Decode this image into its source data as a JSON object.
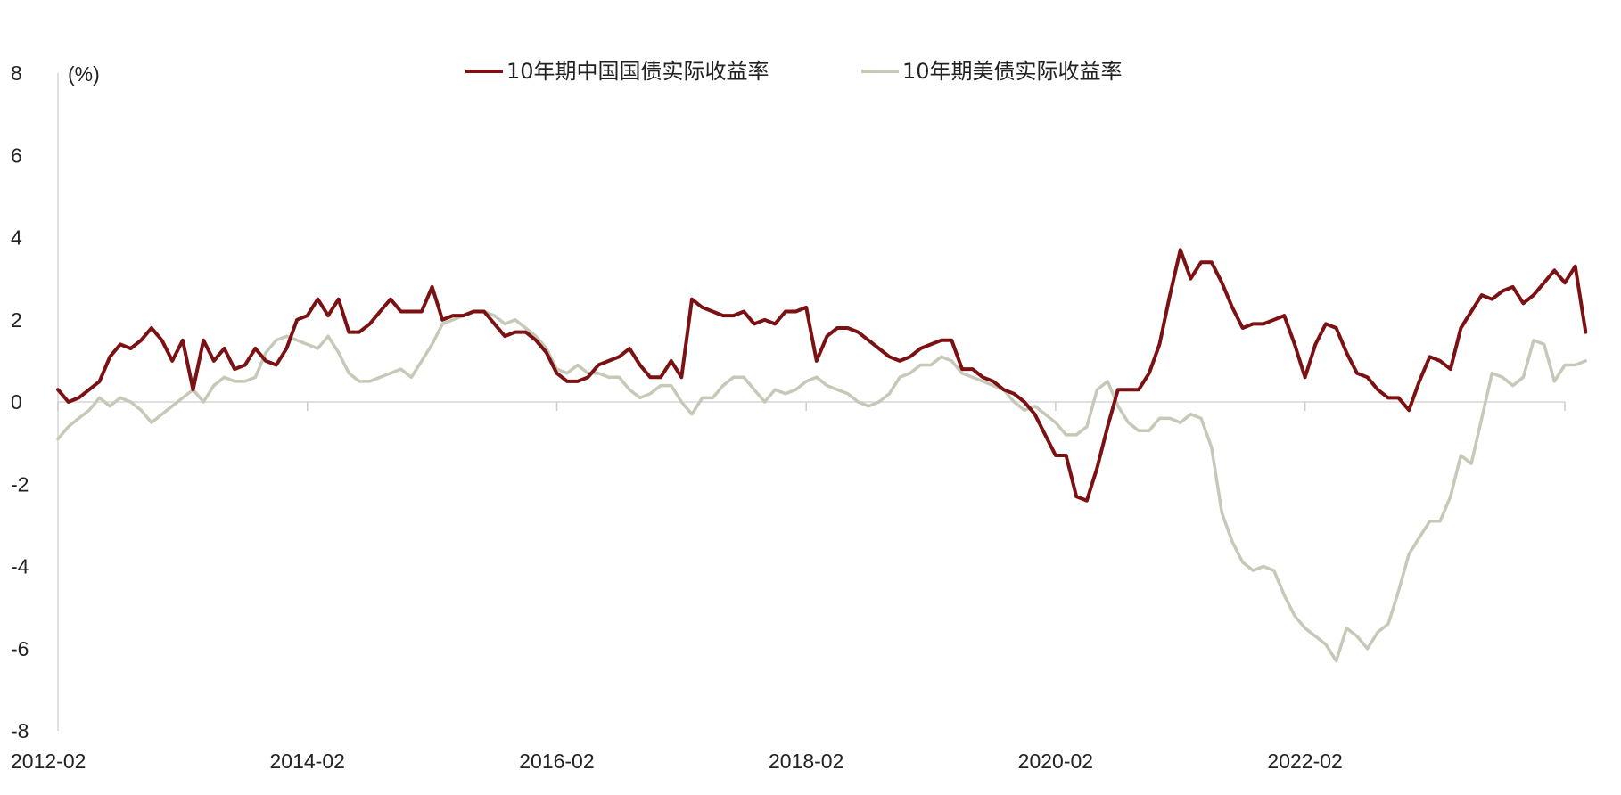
{
  "chart_data": {
    "type": "line",
    "ylabel": "(%)",
    "ylim": [
      -8,
      8
    ],
    "yticks": [
      8,
      6,
      4,
      2,
      0,
      -2,
      -4,
      -6,
      -8
    ],
    "ytick_labels": [
      "8",
      "6",
      "4",
      "2",
      "0",
      "-2",
      "-4",
      "-6",
      "-8"
    ],
    "x_range": [
      "2012-02",
      "2024-03"
    ],
    "xtick_labels": [
      "2012-02",
      "2014-02",
      "2016-02",
      "2018-02",
      "2020-02",
      "2022-02"
    ],
    "legend_position": "top-center",
    "grid": false,
    "series": [
      {
        "name": "10年期中国国债实际收益率",
        "color": "#7b1113",
        "points": [
          [
            "2012-02",
            0.3
          ],
          [
            "2012-03",
            0.0
          ],
          [
            "2012-04",
            0.1
          ],
          [
            "2012-05",
            0.3
          ],
          [
            "2012-06",
            0.5
          ],
          [
            "2012-07",
            1.1
          ],
          [
            "2012-08",
            1.4
          ],
          [
            "2012-09",
            1.3
          ],
          [
            "2012-10",
            1.5
          ],
          [
            "2012-11",
            1.8
          ],
          [
            "2012-12",
            1.5
          ],
          [
            "2013-01",
            1.0
          ],
          [
            "2013-02",
            1.5
          ],
          [
            "2013-03",
            0.3
          ],
          [
            "2013-04",
            1.5
          ],
          [
            "2013-05",
            1.0
          ],
          [
            "2013-06",
            1.3
          ],
          [
            "2013-07",
            0.8
          ],
          [
            "2013-08",
            0.9
          ],
          [
            "2013-09",
            1.3
          ],
          [
            "2013-10",
            1.0
          ],
          [
            "2013-11",
            0.9
          ],
          [
            "2013-12",
            1.3
          ],
          [
            "2014-01",
            2.0
          ],
          [
            "2014-02",
            2.1
          ],
          [
            "2014-03",
            2.5
          ],
          [
            "2014-04",
            2.1
          ],
          [
            "2014-05",
            2.5
          ],
          [
            "2014-06",
            1.7
          ],
          [
            "2014-07",
            1.7
          ],
          [
            "2014-08",
            1.9
          ],
          [
            "2014-09",
            2.2
          ],
          [
            "2014-10",
            2.5
          ],
          [
            "2014-11",
            2.2
          ],
          [
            "2014-12",
            2.2
          ],
          [
            "2015-01",
            2.2
          ],
          [
            "2015-02",
            2.8
          ],
          [
            "2015-03",
            2.0
          ],
          [
            "2015-04",
            2.1
          ],
          [
            "2015-05",
            2.1
          ],
          [
            "2015-06",
            2.2
          ],
          [
            "2015-07",
            2.2
          ],
          [
            "2015-08",
            1.9
          ],
          [
            "2015-09",
            1.6
          ],
          [
            "2015-10",
            1.7
          ],
          [
            "2015-11",
            1.7
          ],
          [
            "2015-12",
            1.5
          ],
          [
            "2016-01",
            1.2
          ],
          [
            "2016-02",
            0.7
          ],
          [
            "2016-03",
            0.5
          ],
          [
            "2016-04",
            0.5
          ],
          [
            "2016-05",
            0.6
          ],
          [
            "2016-06",
            0.9
          ],
          [
            "2016-07",
            1.0
          ],
          [
            "2016-08",
            1.1
          ],
          [
            "2016-09",
            1.3
          ],
          [
            "2016-10",
            0.9
          ],
          [
            "2016-11",
            0.6
          ],
          [
            "2016-12",
            0.6
          ],
          [
            "2017-01",
            1.0
          ],
          [
            "2017-02",
            0.6
          ],
          [
            "2017-03",
            2.5
          ],
          [
            "2017-04",
            2.3
          ],
          [
            "2017-05",
            2.2
          ],
          [
            "2017-06",
            2.1
          ],
          [
            "2017-07",
            2.1
          ],
          [
            "2017-08",
            2.2
          ],
          [
            "2017-09",
            1.9
          ],
          [
            "2017-10",
            2.0
          ],
          [
            "2017-11",
            1.9
          ],
          [
            "2017-12",
            2.2
          ],
          [
            "2018-01",
            2.2
          ],
          [
            "2018-02",
            2.3
          ],
          [
            "2018-03",
            1.0
          ],
          [
            "2018-04",
            1.6
          ],
          [
            "2018-05",
            1.8
          ],
          [
            "2018-06",
            1.8
          ],
          [
            "2018-07",
            1.7
          ],
          [
            "2018-08",
            1.5
          ],
          [
            "2018-09",
            1.3
          ],
          [
            "2018-10",
            1.1
          ],
          [
            "2018-11",
            1.0
          ],
          [
            "2018-12",
            1.1
          ],
          [
            "2019-01",
            1.3
          ],
          [
            "2019-02",
            1.4
          ],
          [
            "2019-03",
            1.5
          ],
          [
            "2019-04",
            1.5
          ],
          [
            "2019-05",
            0.8
          ],
          [
            "2019-06",
            0.8
          ],
          [
            "2019-07",
            0.6
          ],
          [
            "2019-08",
            0.5
          ],
          [
            "2019-09",
            0.3
          ],
          [
            "2019-10",
            0.2
          ],
          [
            "2019-11",
            0.0
          ],
          [
            "2019-12",
            -0.3
          ],
          [
            "2020-01",
            -0.8
          ],
          [
            "2020-02",
            -1.3
          ],
          [
            "2020-03",
            -1.3
          ],
          [
            "2020-04",
            -2.3
          ],
          [
            "2020-05",
            -2.4
          ],
          [
            "2020-06",
            -1.6
          ],
          [
            "2020-07",
            -0.6
          ],
          [
            "2020-08",
            0.3
          ],
          [
            "2020-09",
            0.3
          ],
          [
            "2020-10",
            0.3
          ],
          [
            "2020-11",
            0.7
          ],
          [
            "2020-12",
            1.4
          ],
          [
            "2021-01",
            2.6
          ],
          [
            "2021-02",
            3.7
          ],
          [
            "2021-03",
            3.0
          ],
          [
            "2021-04",
            3.4
          ],
          [
            "2021-05",
            3.4
          ],
          [
            "2021-06",
            2.9
          ],
          [
            "2021-07",
            2.3
          ],
          [
            "2021-08",
            1.8
          ],
          [
            "2021-09",
            1.9
          ],
          [
            "2021-10",
            1.9
          ],
          [
            "2021-11",
            2.0
          ],
          [
            "2021-12",
            2.1
          ],
          [
            "2022-01",
            1.4
          ],
          [
            "2022-02",
            0.6
          ],
          [
            "2022-03",
            1.4
          ],
          [
            "2022-04",
            1.9
          ],
          [
            "2022-05",
            1.8
          ],
          [
            "2022-06",
            1.2
          ],
          [
            "2022-07",
            0.7
          ],
          [
            "2022-08",
            0.6
          ],
          [
            "2022-09",
            0.3
          ],
          [
            "2022-10",
            0.1
          ],
          [
            "2022-11",
            0.1
          ],
          [
            "2022-12",
            -0.2
          ],
          [
            "2023-01",
            0.5
          ],
          [
            "2023-02",
            1.1
          ],
          [
            "2023-03",
            1.0
          ],
          [
            "2023-04",
            0.8
          ],
          [
            "2023-05",
            1.8
          ],
          [
            "2023-06",
            2.2
          ],
          [
            "2023-07",
            2.6
          ],
          [
            "2023-08",
            2.5
          ],
          [
            "2023-09",
            2.7
          ],
          [
            "2023-10",
            2.8
          ],
          [
            "2023-11",
            2.4
          ],
          [
            "2023-12",
            2.6
          ],
          [
            "2024-01",
            2.9
          ],
          [
            "2024-02",
            3.2
          ],
          [
            "2024-03",
            2.9
          ],
          [
            "2024-04",
            3.3
          ],
          [
            "2024-05",
            1.7
          ]
        ]
      },
      {
        "name": "10年期美债实际收益率",
        "color": "#c8c8b8",
        "points": [
          [
            "2012-02",
            -0.9
          ],
          [
            "2012-03",
            -0.6
          ],
          [
            "2012-04",
            -0.4
          ],
          [
            "2012-05",
            -0.2
          ],
          [
            "2012-06",
            0.1
          ],
          [
            "2012-07",
            -0.1
          ],
          [
            "2012-08",
            0.1
          ],
          [
            "2012-09",
            0.0
          ],
          [
            "2012-10",
            -0.2
          ],
          [
            "2012-11",
            -0.5
          ],
          [
            "2012-12",
            -0.3
          ],
          [
            "2013-01",
            -0.1
          ],
          [
            "2013-02",
            0.1
          ],
          [
            "2013-03",
            0.3
          ],
          [
            "2013-04",
            0.0
          ],
          [
            "2013-05",
            0.4
          ],
          [
            "2013-06",
            0.6
          ],
          [
            "2013-07",
            0.5
          ],
          [
            "2013-08",
            0.5
          ],
          [
            "2013-09",
            0.6
          ],
          [
            "2013-10",
            1.2
          ],
          [
            "2013-11",
            1.5
          ],
          [
            "2013-12",
            1.6
          ],
          [
            "2014-01",
            1.5
          ],
          [
            "2014-02",
            1.4
          ],
          [
            "2014-03",
            1.3
          ],
          [
            "2014-04",
            1.6
          ],
          [
            "2014-05",
            1.2
          ],
          [
            "2014-06",
            0.7
          ],
          [
            "2014-07",
            0.5
          ],
          [
            "2014-08",
            0.5
          ],
          [
            "2014-09",
            0.6
          ],
          [
            "2014-10",
            0.7
          ],
          [
            "2014-11",
            0.8
          ],
          [
            "2014-12",
            0.6
          ],
          [
            "2015-01",
            1.0
          ],
          [
            "2015-02",
            1.4
          ],
          [
            "2015-03",
            1.9
          ],
          [
            "2015-04",
            2.0
          ],
          [
            "2015-05",
            2.1
          ],
          [
            "2015-06",
            2.2
          ],
          [
            "2015-07",
            2.2
          ],
          [
            "2015-08",
            2.1
          ],
          [
            "2015-09",
            1.9
          ],
          [
            "2015-10",
            2.0
          ],
          [
            "2015-11",
            1.8
          ],
          [
            "2015-12",
            1.6
          ],
          [
            "2016-01",
            1.3
          ],
          [
            "2016-02",
            0.8
          ],
          [
            "2016-03",
            0.7
          ],
          [
            "2016-04",
            0.9
          ],
          [
            "2016-05",
            0.7
          ],
          [
            "2016-06",
            0.7
          ],
          [
            "2016-07",
            0.6
          ],
          [
            "2016-08",
            0.6
          ],
          [
            "2016-09",
            0.3
          ],
          [
            "2016-10",
            0.1
          ],
          [
            "2016-11",
            0.2
          ],
          [
            "2016-12",
            0.4
          ],
          [
            "2017-01",
            0.4
          ],
          [
            "2017-02",
            0.0
          ],
          [
            "2017-03",
            -0.3
          ],
          [
            "2017-04",
            0.1
          ],
          [
            "2017-05",
            0.1
          ],
          [
            "2017-06",
            0.4
          ],
          [
            "2017-07",
            0.6
          ],
          [
            "2017-08",
            0.6
          ],
          [
            "2017-09",
            0.3
          ],
          [
            "2017-10",
            0.0
          ],
          [
            "2017-11",
            0.3
          ],
          [
            "2017-12",
            0.2
          ],
          [
            "2018-01",
            0.3
          ],
          [
            "2018-02",
            0.5
          ],
          [
            "2018-03",
            0.6
          ],
          [
            "2018-04",
            0.4
          ],
          [
            "2018-05",
            0.3
          ],
          [
            "2018-06",
            0.2
          ],
          [
            "2018-07",
            0.0
          ],
          [
            "2018-08",
            -0.1
          ],
          [
            "2018-09",
            0.0
          ],
          [
            "2018-10",
            0.2
          ],
          [
            "2018-11",
            0.6
          ],
          [
            "2018-12",
            0.7
          ],
          [
            "2019-01",
            0.9
          ],
          [
            "2019-02",
            0.9
          ],
          [
            "2019-03",
            1.1
          ],
          [
            "2019-04",
            1.0
          ],
          [
            "2019-05",
            0.7
          ],
          [
            "2019-06",
            0.6
          ],
          [
            "2019-07",
            0.5
          ],
          [
            "2019-08",
            0.4
          ],
          [
            "2019-09",
            0.3
          ],
          [
            "2019-10",
            0.0
          ],
          [
            "2019-11",
            -0.2
          ],
          [
            "2019-12",
            -0.1
          ],
          [
            "2020-01",
            -0.3
          ],
          [
            "2020-02",
            -0.5
          ],
          [
            "2020-03",
            -0.8
          ],
          [
            "2020-04",
            -0.8
          ],
          [
            "2020-05",
            -0.6
          ],
          [
            "2020-06",
            0.3
          ],
          [
            "2020-07",
            0.5
          ],
          [
            "2020-08",
            -0.1
          ],
          [
            "2020-09",
            -0.5
          ],
          [
            "2020-10",
            -0.7
          ],
          [
            "2020-11",
            -0.7
          ],
          [
            "2020-12",
            -0.4
          ],
          [
            "2021-01",
            -0.4
          ],
          [
            "2021-02",
            -0.5
          ],
          [
            "2021-03",
            -0.3
          ],
          [
            "2021-04",
            -0.4
          ],
          [
            "2021-05",
            -1.1
          ],
          [
            "2021-06",
            -2.7
          ],
          [
            "2021-07",
            -3.4
          ],
          [
            "2021-08",
            -3.9
          ],
          [
            "2021-09",
            -4.1
          ],
          [
            "2021-10",
            -4.0
          ],
          [
            "2021-11",
            -4.1
          ],
          [
            "2021-12",
            -4.7
          ],
          [
            "2022-01",
            -5.2
          ],
          [
            "2022-02",
            -5.5
          ],
          [
            "2022-03",
            -5.7
          ],
          [
            "2022-04",
            -5.9
          ],
          [
            "2022-05",
            -6.3
          ],
          [
            "2022-06",
            -5.5
          ],
          [
            "2022-07",
            -5.7
          ],
          [
            "2022-08",
            -6.0
          ],
          [
            "2022-09",
            -5.6
          ],
          [
            "2022-10",
            -5.4
          ],
          [
            "2022-11",
            -4.6
          ],
          [
            "2022-12",
            -3.7
          ],
          [
            "2023-01",
            -3.3
          ],
          [
            "2023-02",
            -2.9
          ],
          [
            "2023-03",
            -2.9
          ],
          [
            "2023-04",
            -2.3
          ],
          [
            "2023-05",
            -1.3
          ],
          [
            "2023-06",
            -1.5
          ],
          [
            "2023-07",
            -0.4
          ],
          [
            "2023-08",
            0.7
          ],
          [
            "2023-09",
            0.6
          ],
          [
            "2023-10",
            0.4
          ],
          [
            "2023-11",
            0.6
          ],
          [
            "2023-12",
            1.5
          ],
          [
            "2024-01",
            1.4
          ],
          [
            "2024-02",
            0.5
          ],
          [
            "2024-03",
            0.9
          ],
          [
            "2024-04",
            0.9
          ],
          [
            "2024-05",
            1.0
          ]
        ]
      }
    ]
  }
}
